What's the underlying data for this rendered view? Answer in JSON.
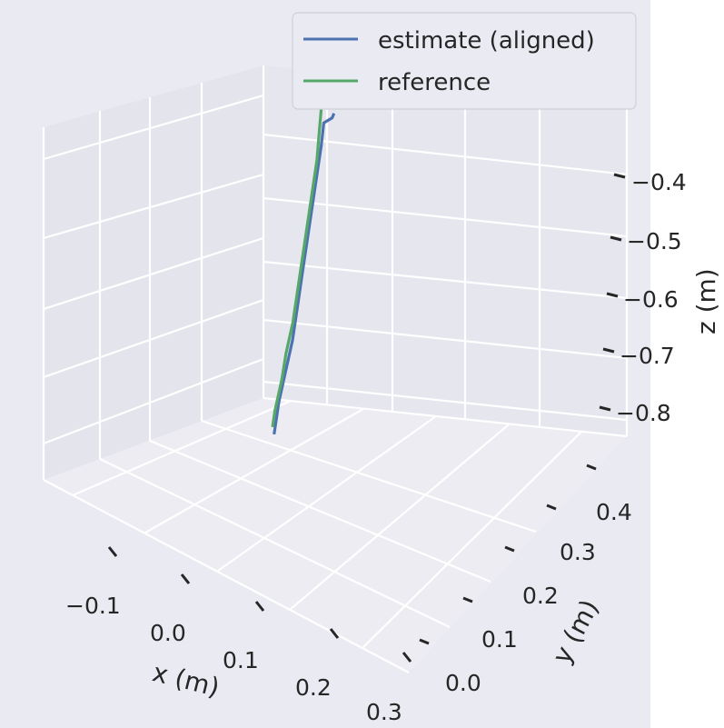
{
  "chart_data": {
    "type": "line3d",
    "title": "",
    "xlabel": "x (m)",
    "ylabel": "y (m)",
    "zlabel": "z (m)",
    "x_ticks": [
      "−0.1",
      "0.0",
      "0.1",
      "0.2",
      "0.3"
    ],
    "y_ticks": [
      "0.0",
      "0.1",
      "0.2",
      "0.3",
      "0.4"
    ],
    "z_ticks": [
      "−0.4",
      "−0.5",
      "−0.6",
      "−0.7",
      "−0.8"
    ],
    "grid": true,
    "legend": "top-right",
    "series": [
      {
        "name": "estimate (aligned)",
        "color": "#4c72b0",
        "points": [
          [
            0.15,
            0.02,
            -0.88
          ],
          [
            0.14,
            0.03,
            -0.86
          ],
          [
            0.13,
            0.04,
            -0.84
          ],
          [
            0.12,
            0.06,
            -0.8
          ],
          [
            0.11,
            0.08,
            -0.76
          ],
          [
            0.09,
            0.1,
            -0.72
          ],
          [
            0.07,
            0.12,
            -0.68
          ],
          [
            0.05,
            0.14,
            -0.64
          ],
          [
            0.03,
            0.16,
            -0.6
          ],
          [
            0.01,
            0.18,
            -0.56
          ],
          [
            -0.01,
            0.2,
            -0.52
          ],
          [
            -0.02,
            0.21,
            -0.49
          ],
          [
            0.0,
            0.22,
            -0.48
          ],
          [
            0.01,
            0.22,
            -0.47
          ]
        ]
      },
      {
        "name": "reference",
        "color": "#55a868",
        "points": [
          [
            0.12,
            0.03,
            -0.88
          ],
          [
            0.11,
            0.04,
            -0.86
          ],
          [
            0.1,
            0.06,
            -0.82
          ],
          [
            0.1,
            0.07,
            -0.78
          ],
          [
            0.09,
            0.09,
            -0.74
          ],
          [
            0.07,
            0.11,
            -0.7
          ],
          [
            0.05,
            0.13,
            -0.66
          ],
          [
            0.03,
            0.15,
            -0.62
          ],
          [
            0.01,
            0.17,
            -0.58
          ],
          [
            -0.01,
            0.19,
            -0.54
          ],
          [
            -0.02,
            0.2,
            -0.5
          ],
          [
            -0.03,
            0.21,
            -0.46
          ],
          [
            -0.03,
            0.22,
            -0.43
          ]
        ]
      }
    ]
  }
}
